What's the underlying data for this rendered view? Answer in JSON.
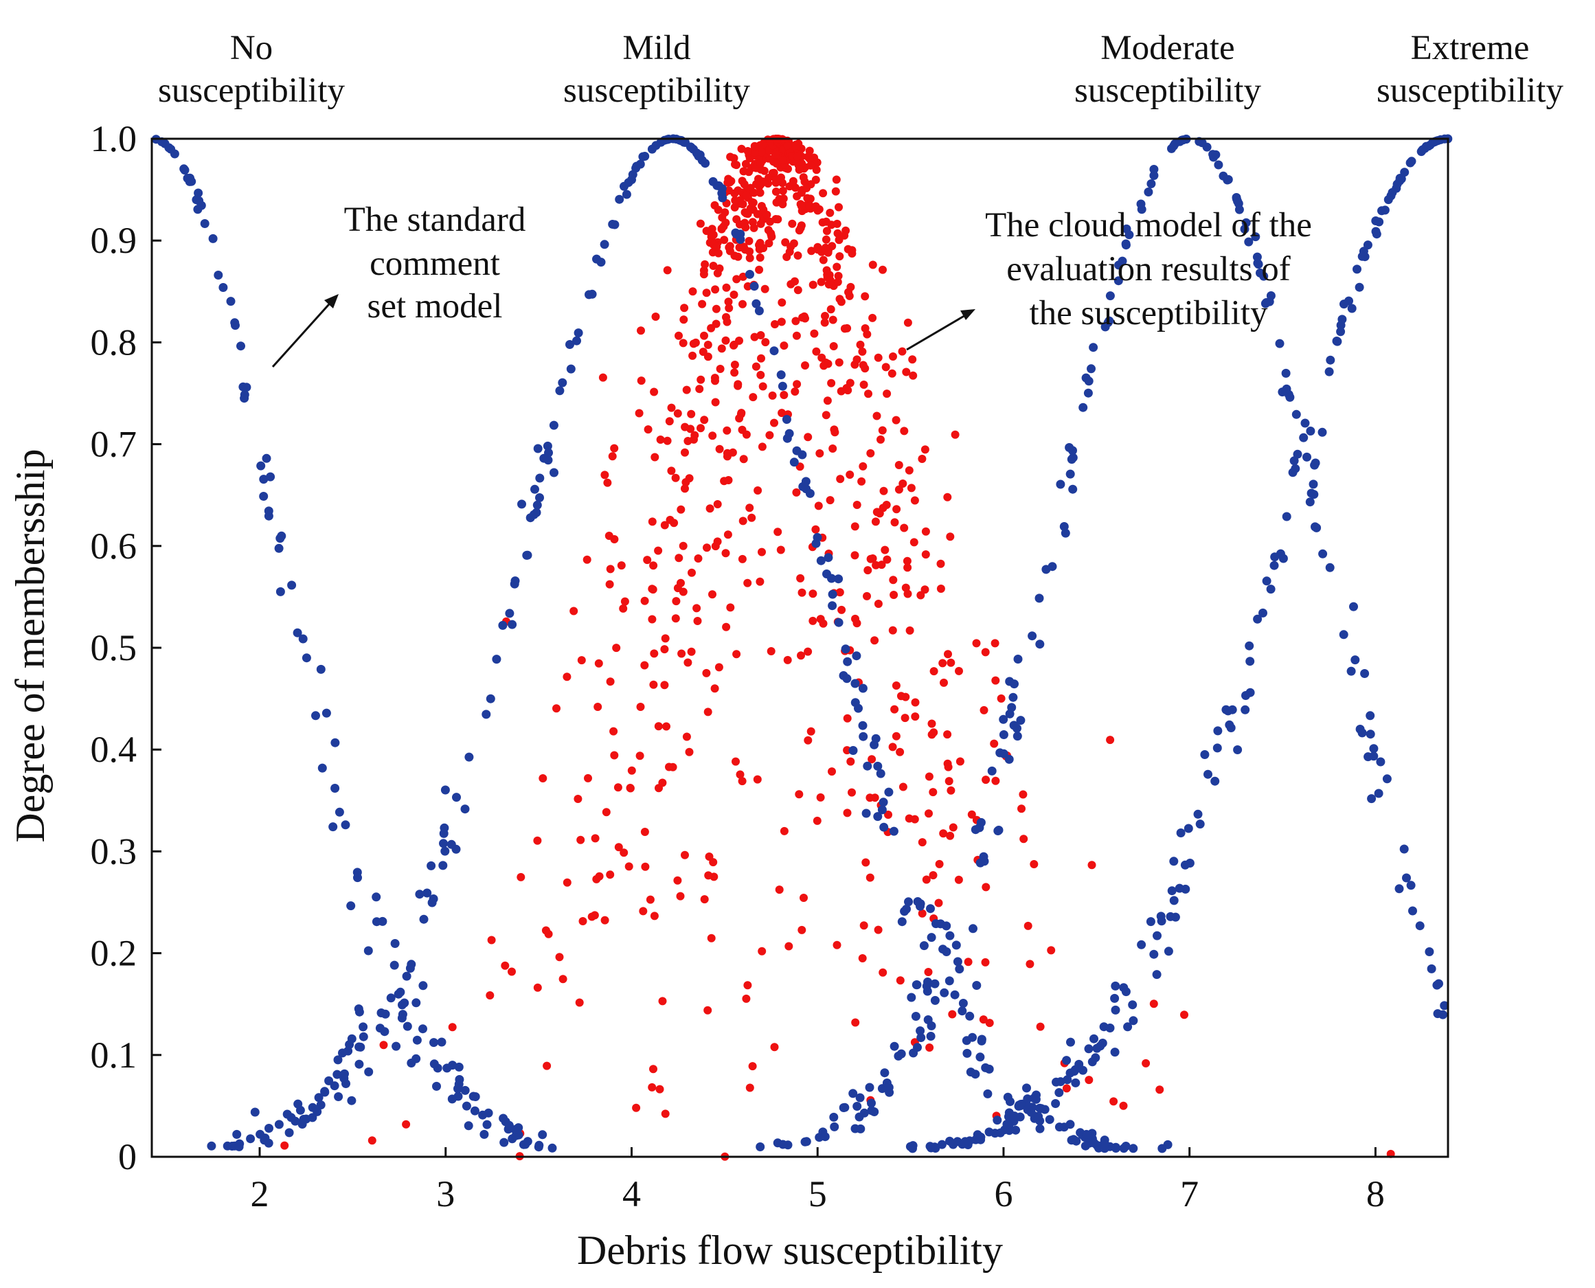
{
  "chart_data": {
    "type": "scatter",
    "title": "",
    "xlabel": "Debris flow susceptibility",
    "ylabel": "Degree of membersship",
    "xlim": [
      1.42,
      8.39
    ],
    "ylim": [
      0,
      1.0
    ],
    "xticks": [
      "2",
      "3",
      "4",
      "5",
      "6",
      "7",
      "8"
    ],
    "yticks": [
      "0",
      "0.1",
      "0.2",
      "0.3",
      "0.4",
      "0.5",
      "0.6",
      "0.7",
      "0.8",
      "0.9",
      "1.0"
    ],
    "categories": [
      {
        "name": "No susceptibility",
        "line1": "No",
        "line2": "susceptibility",
        "x": 1.95
      },
      {
        "name": "Mild susceptibility",
        "line1": "Mild",
        "line2": "susceptibility",
        "x": 4.25
      },
      {
        "name": "Moderate susceptibility",
        "line1": "Moderate",
        "line2": "susceptibility",
        "x": 7.0
      },
      {
        "name": "Extreme susceptibility",
        "line1": "Extreme",
        "line2": "susceptibility",
        "x": 8.35
      }
    ],
    "series": [
      {
        "name": "The standard comment set model",
        "kind": "normal-cloud",
        "color": "#1f3c9c",
        "clouds": [
          {
            "Ex": 1.42,
            "En": 0.7,
            "He": 0.03
          },
          {
            "Ex": 4.22,
            "En": 0.78,
            "He": 0.03
          },
          {
            "Ex": 7.0,
            "En": 0.72,
            "He": 0.03
          },
          {
            "Ex": 8.39,
            "En": 0.9,
            "He": 0.03
          }
        ]
      },
      {
        "name": "The cloud model of the evaluation results of the susceptibility",
        "kind": "normal-cloud",
        "color": "#ee1111",
        "cloud": {
          "Ex": 4.78,
          "En": 0.5,
          "He": 0.28
        }
      }
    ],
    "annotations": [
      {
        "lines": [
          "The standard",
          "comment",
          "set model"
        ],
        "target": "standard-curve"
      },
      {
        "lines": [
          "The cloud model of the",
          "evaluation results of",
          "the susceptibility"
        ],
        "target": "result-cloud"
      }
    ],
    "grid": false,
    "legend": "none"
  }
}
